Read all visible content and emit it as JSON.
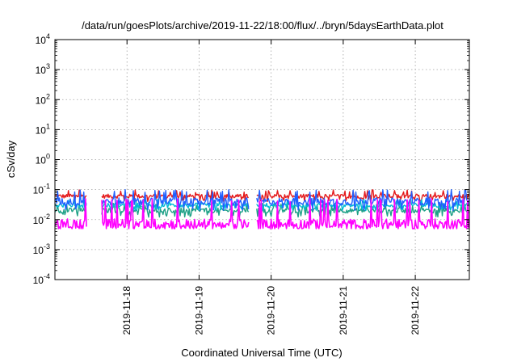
{
  "chart_data": {
    "type": "line",
    "title": "/data/run/goesPlots/archive/2019-11-22/18:00/flux/../bryn/5daysEarthData.plot",
    "xlabel": "Coordinated Universal Time (UTC)",
    "ylabel": "cSv/day",
    "y_scale": "log",
    "ylim": [
      0.0001,
      10000
    ],
    "y_ticks": [
      {
        "base": "10",
        "exp": "-4",
        "value": 0.0001
      },
      {
        "base": "10",
        "exp": "-3",
        "value": 0.001
      },
      {
        "base": "10",
        "exp": "-2",
        "value": 0.01
      },
      {
        "base": "10",
        "exp": "-1",
        "value": 0.1
      },
      {
        "base": "10",
        "exp": "0",
        "value": 1
      },
      {
        "base": "10",
        "exp": "1",
        "value": 10
      },
      {
        "base": "10",
        "exp": "2",
        "value": 100
      },
      {
        "base": "10",
        "exp": "3",
        "value": 1000
      },
      {
        "base": "10",
        "exp": "4",
        "value": 10000
      }
    ],
    "xlim": [
      "2019-11-17 00:00",
      "2019-11-22 18:00"
    ],
    "x_ticks": [
      "2019-11-18",
      "2019-11-19",
      "2019-11-20",
      "2019-11-21",
      "2019-11-22"
    ],
    "grid": true,
    "legend": "none",
    "gaps": [
      [
        "2019-11-17 10:30",
        "2019-11-17 15:30"
      ],
      [
        "2019-11-19 16:30",
        "2019-11-19 19:00"
      ]
    ],
    "series": [
      {
        "color": "#e41a1c",
        "typical": 0.06,
        "low": 0.04,
        "high": 0.1
      },
      {
        "color": "#1fa187",
        "typical": 0.02,
        "low": 0.012,
        "high": 0.035
      },
      {
        "color": "#00bcd4",
        "typical": 0.03,
        "low": 0.02,
        "high": 0.05
      },
      {
        "color": "#1f5fff",
        "typical": 0.04,
        "low": 0.02,
        "high": 0.1
      },
      {
        "color": "#ff00ff",
        "typical": 0.007,
        "low": 0.005,
        "high": 0.05
      }
    ]
  }
}
